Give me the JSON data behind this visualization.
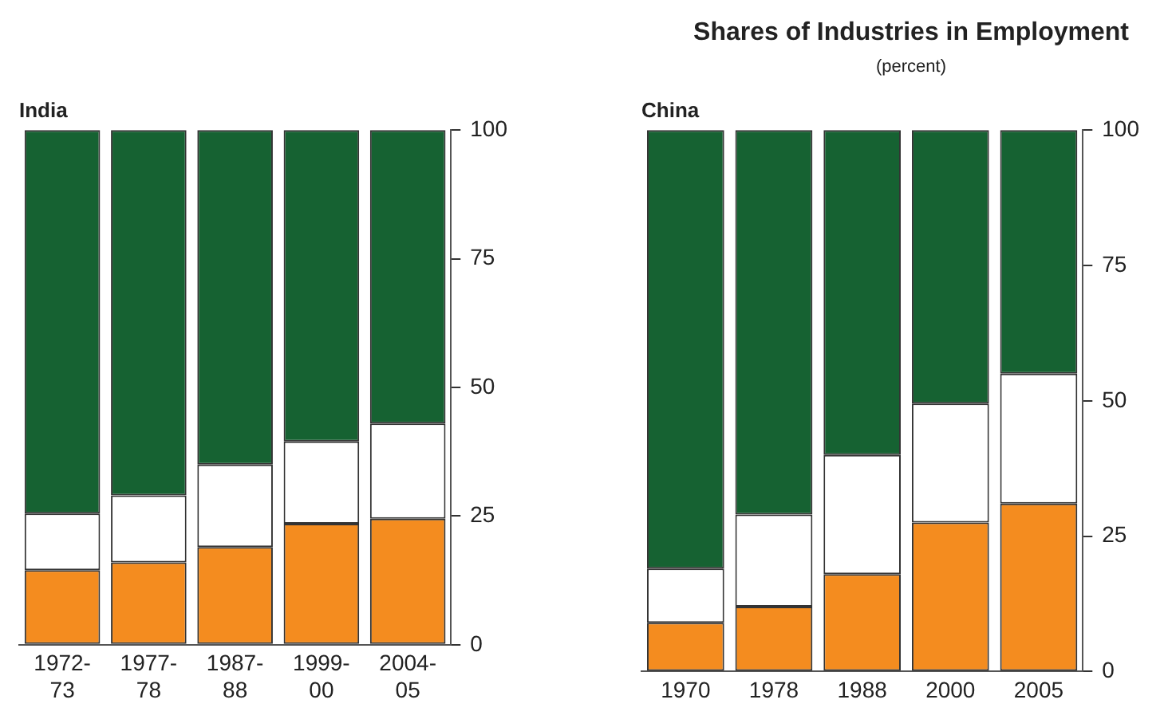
{
  "chart_data": [
    {
      "type": "bar",
      "title": "India",
      "categories": [
        "1972-73",
        "1977-78",
        "1987-88",
        "1999-00",
        "2004-05"
      ],
      "stacked": true,
      "ylim": [
        0,
        100
      ],
      "yticks": [
        0,
        25,
        50,
        75,
        100
      ],
      "grid": false,
      "legend": false,
      "series": [
        {
          "color": "#f48c1f",
          "values": [
            14.5,
            16,
            19,
            23.5,
            24.5
          ]
        },
        {
          "color": "#ffffff",
          "values": [
            11,
            13,
            16,
            16,
            18.5
          ]
        },
        {
          "color": "#166232",
          "values": [
            74.5,
            71,
            65,
            60.5,
            57
          ]
        }
      ]
    },
    {
      "type": "bar",
      "title": "China",
      "annotations": [
        "Shares of Industries in Employment",
        "(percent)"
      ],
      "categories": [
        "1970",
        "1978",
        "1988",
        "2000",
        "2005"
      ],
      "stacked": true,
      "ylim": [
        0,
        100
      ],
      "yticks": [
        0,
        25,
        50,
        75,
        100
      ],
      "grid": false,
      "legend": false,
      "series": [
        {
          "color": "#f48c1f",
          "values": [
            9,
            12,
            18,
            27.5,
            31
          ]
        },
        {
          "color": "#ffffff",
          "values": [
            10,
            17,
            22,
            22,
            24
          ]
        },
        {
          "color": "#166232",
          "values": [
            81,
            71,
            60,
            50.5,
            45
          ]
        }
      ]
    }
  ]
}
